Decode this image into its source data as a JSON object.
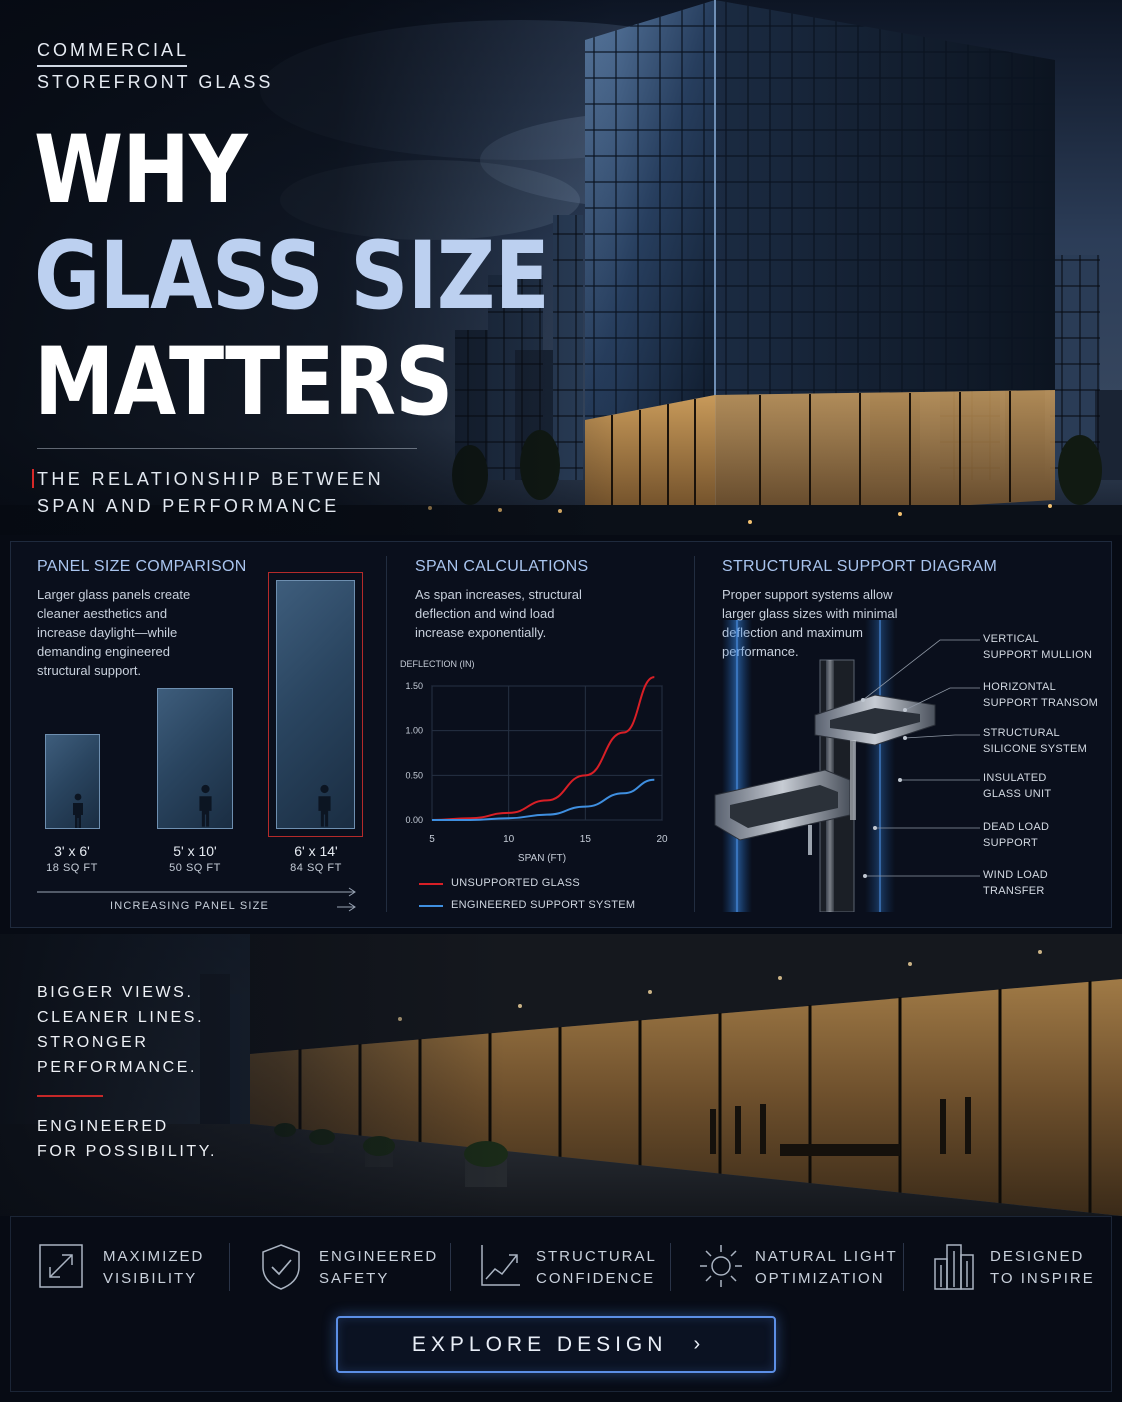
{
  "hero": {
    "eyebrow_line1": "COMMERCIAL",
    "eyebrow_line2": "STOREFRONT GLASS",
    "headline_line1": "WHY",
    "headline_line2": "GLASS SIZE",
    "headline_line3": "MATTERS",
    "subline_line1": "THE RELATIONSHIP BETWEEN",
    "subline_line2": "SPAN AND PERFORMANCE"
  },
  "panel_comparison": {
    "title": "PANEL SIZE COMPARISON",
    "description": "Larger glass panels create cleaner aesthetics and increase daylight—while demanding engineered structural support.",
    "panels": [
      {
        "dimensions": "3' x 6'",
        "area": "18 SQ FT"
      },
      {
        "dimensions": "5' x 10'",
        "area": "50 SQ FT"
      },
      {
        "dimensions": "6' x 14'",
        "area": "84 SQ FT"
      }
    ],
    "axis_label": "INCREASING PANEL SIZE"
  },
  "span_calculations": {
    "title": "SPAN CALCULATIONS",
    "description": "As span increases, structural deflection and wind load increase exponentially.",
    "legend": [
      "UNSUPPORTED GLASS",
      "ENGINEERED SUPPORT SYSTEM"
    ],
    "colors": {
      "unsupported": "#d81f26",
      "engineered": "#3f8fe0"
    }
  },
  "chart_data": {
    "type": "line",
    "xlabel": "SPAN (FT)",
    "ylabel": "DEFLECTION (IN)",
    "xlim": [
      5,
      20
    ],
    "ylim": [
      0,
      1.5
    ],
    "x_ticks": [
      "5",
      "10",
      "15",
      "20"
    ],
    "y_ticks": [
      "0.00",
      "0.50",
      "1.00",
      "1.50"
    ],
    "grid": true,
    "legend_position": "bottom",
    "series": [
      {
        "name": "UNSUPPORTED GLASS",
        "x": [
          5,
          7.5,
          10,
          12.5,
          15,
          17.5,
          19.5
        ],
        "y": [
          0.0,
          0.02,
          0.08,
          0.22,
          0.5,
          0.98,
          1.6
        ]
      },
      {
        "name": "ENGINEERED SUPPORT SYSTEM",
        "x": [
          5,
          7.5,
          10,
          12.5,
          15,
          17.5,
          19.5
        ],
        "y": [
          0.0,
          0.0,
          0.02,
          0.06,
          0.15,
          0.3,
          0.45
        ]
      }
    ]
  },
  "structural_diagram": {
    "title": "STRUCTURAL SUPPORT DIAGRAM",
    "description": "Proper support systems allow larger glass sizes with minimal deflection and maximum performance.",
    "callouts": [
      {
        "line1": "VERTICAL",
        "line2": "SUPPORT MULLION"
      },
      {
        "line1": "HORIZONTAL",
        "line2": "SUPPORT TRANSOM"
      },
      {
        "line1": "STRUCTURAL",
        "line2": "SILICONE SYSTEM"
      },
      {
        "line1": "INSULATED",
        "line2": "GLASS UNIT"
      },
      {
        "line1": "DEAD LOAD",
        "line2": "SUPPORT"
      },
      {
        "line1": "WIND LOAD",
        "line2": "TRANSFER"
      }
    ]
  },
  "storefront": {
    "lines": [
      "BIGGER VIEWS.",
      "CLEANER LINES.",
      "STRONGER",
      "PERFORMANCE."
    ],
    "tagline_line1": "ENGINEERED",
    "tagline_line2": "FOR POSSIBILITY."
  },
  "features": [
    {
      "icon": "expand-arrow-icon",
      "line1": "MAXIMIZED",
      "line2": "VISIBILITY"
    },
    {
      "icon": "shield-check-icon",
      "line1": "ENGINEERED",
      "line2": "SAFETY"
    },
    {
      "icon": "trend-chart-icon",
      "line1": "STRUCTURAL",
      "line2": "CONFIDENCE"
    },
    {
      "icon": "sun-icon",
      "line1": "NATURAL LIGHT",
      "line2": "OPTIMIZATION"
    },
    {
      "icon": "buildings-icon",
      "line1": "DESIGNED",
      "line2": "TO INSPIRE"
    }
  ],
  "cta": {
    "label": "EXPLORE DESIGN"
  }
}
